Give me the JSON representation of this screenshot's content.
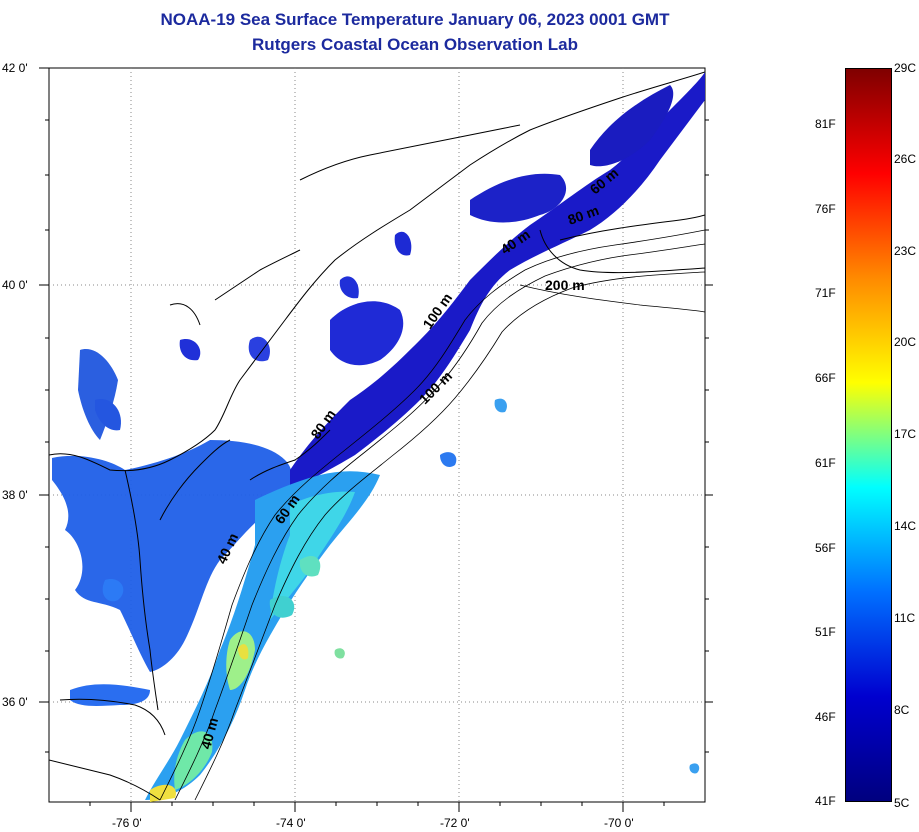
{
  "title": {
    "line1": "NOAA-19 Sea Surface Temperature January 06, 2023 0001 GMT",
    "line2": "Rutgers Coastal Ocean Observation Lab"
  },
  "map": {
    "lon_ticks": [
      "-76 0'",
      "-74 0'",
      "-72 0'",
      "-70 0'"
    ],
    "lat_ticks": [
      "42 0'",
      "40 0'",
      "38 0'",
      "36 0'"
    ],
    "contour_labels": [
      "200 m",
      "100 m",
      "100 m",
      "80 m",
      "60 m",
      "40 m",
      "40 m",
      "40 m",
      "60 m",
      "80 m"
    ]
  },
  "colorbar": {
    "fahrenheit": [
      "81F",
      "76F",
      "71F",
      "66F",
      "61F",
      "56F",
      "51F",
      "46F",
      "41F"
    ],
    "celsius": [
      "29C",
      "26C",
      "23C",
      "20C",
      "17C",
      "14C",
      "11C",
      "8C",
      "5C"
    ],
    "colors": [
      "#7f0000",
      "#ff0000",
      "#ff8a00",
      "#ffff00",
      "#00ffff",
      "#0070ff",
      "#0000cf",
      "#00007f"
    ]
  }
}
